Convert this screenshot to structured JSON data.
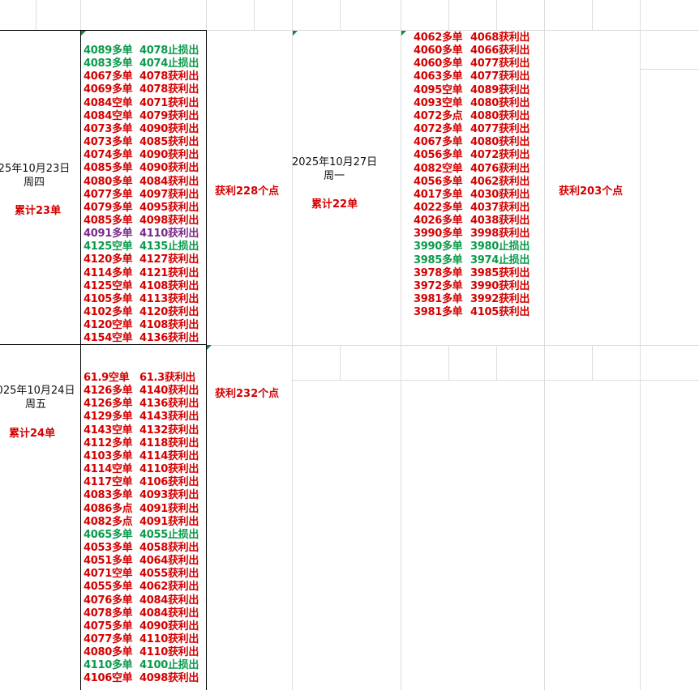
{
  "blocks": [
    {
      "date": "25年10月23日",
      "weekday": "周四",
      "total": "累计23单",
      "profit": "获利228个点",
      "entries": [
        {
          "e": "4089多单",
          "x": "4078止损出",
          "c": "g"
        },
        {
          "e": "4083多单",
          "x": "4074止损出",
          "c": "g"
        },
        {
          "e": "4067多单",
          "x": "4078获利出",
          "c": "r"
        },
        {
          "e": "4069多单",
          "x": "4078获利出",
          "c": "r"
        },
        {
          "e": "4084空单",
          "x": "4071获利出",
          "c": "r"
        },
        {
          "e": "4084空单",
          "x": "4079获利出",
          "c": "r"
        },
        {
          "e": "4073多单",
          "x": "4090获利出",
          "c": "r"
        },
        {
          "e": "4073多单",
          "x": "4085获利出",
          "c": "r"
        },
        {
          "e": "4074多单",
          "x": "4090获利出",
          "c": "r"
        },
        {
          "e": "4085多单",
          "x": "4090获利出",
          "c": "r"
        },
        {
          "e": "4080多单",
          "x": "4084获利出",
          "c": "r"
        },
        {
          "e": "4077多单",
          "x": "4097获利出",
          "c": "r"
        },
        {
          "e": "4079多单",
          "x": "4095获利出",
          "c": "r"
        },
        {
          "e": "4085多单",
          "x": "4098获利出",
          "c": "r"
        },
        {
          "e": "4091多单",
          "x": "4110获利出",
          "c": "p"
        },
        {
          "e": "4125空单",
          "x": "4135止损出",
          "c": "g"
        },
        {
          "e": "4120多单",
          "x": "4127获利出",
          "c": "r"
        },
        {
          "e": "4114多单",
          "x": "4121获利出",
          "c": "r"
        },
        {
          "e": "4125空单",
          "x": "4108获利出",
          "c": "r"
        },
        {
          "e": "4105多单",
          "x": "4113获利出",
          "c": "r"
        },
        {
          "e": "4102多单",
          "x": "4120获利出",
          "c": "r"
        },
        {
          "e": "4120空单",
          "x": "4108获利出",
          "c": "r"
        },
        {
          "e": "4154空单",
          "x": "4136获利出",
          "c": "r"
        }
      ]
    },
    {
      "date": "025年10月24日",
      "weekday": "周五",
      "total": "累计24单",
      "profit": "获利232个点",
      "entries": [
        {
          "e": "61.9空单",
          "x": "61.3获利出",
          "c": "r"
        },
        {
          "e": "4126多单",
          "x": "4140获利出",
          "c": "r"
        },
        {
          "e": "4126多单",
          "x": "4136获利出",
          "c": "r"
        },
        {
          "e": "4129多单",
          "x": "4143获利出",
          "c": "r"
        },
        {
          "e": "4143空单",
          "x": "4132获利出",
          "c": "r"
        },
        {
          "e": "4112多单",
          "x": "4118获利出",
          "c": "r"
        },
        {
          "e": "4103多单",
          "x": "4114获利出",
          "c": "r"
        },
        {
          "e": "4114空单",
          "x": "4110获利出",
          "c": "r"
        },
        {
          "e": "4117空单",
          "x": "4106获利出",
          "c": "r"
        },
        {
          "e": "4083多单",
          "x": "4093获利出",
          "c": "r"
        },
        {
          "e": "4086多点",
          "x": "4091获利出",
          "c": "r"
        },
        {
          "e": "4082多点",
          "x": "4091获利出",
          "c": "r"
        },
        {
          "e": "4065多单",
          "x": "4055止损出",
          "c": "g"
        },
        {
          "e": "4053多单",
          "x": "4058获利出",
          "c": "r"
        },
        {
          "e": "4051多单",
          "x": "4064获利出",
          "c": "r"
        },
        {
          "e": "4071空单",
          "x": "4055获利出",
          "c": "r"
        },
        {
          "e": "4055多单",
          "x": "4062获利出",
          "c": "r"
        },
        {
          "e": "4076多单",
          "x": "4084获利出",
          "c": "r"
        },
        {
          "e": "4078多单",
          "x": "4084获利出",
          "c": "r"
        },
        {
          "e": "4075多单",
          "x": "4090获利出",
          "c": "r"
        },
        {
          "e": "4077多单",
          "x": "4110获利出",
          "c": "r"
        },
        {
          "e": "4080多单",
          "x": "4110获利出",
          "c": "r"
        },
        {
          "e": "4110多单",
          "x": "4100止损出",
          "c": "g"
        },
        {
          "e": "4106空单",
          "x": "4098获利出",
          "c": "r"
        }
      ]
    },
    {
      "date": "2025年10月27日",
      "weekday": "周一",
      "total": "累计22单",
      "profit": "获利203个点",
      "entries": [
        {
          "e": "4062多单",
          "x": "4068获利出",
          "c": "r"
        },
        {
          "e": "4060多单",
          "x": "4066获利出",
          "c": "r"
        },
        {
          "e": "4060多单",
          "x": "4077获利出",
          "c": "r"
        },
        {
          "e": "4063多单",
          "x": "4077获利出",
          "c": "r"
        },
        {
          "e": "4095空单",
          "x": "4089获利出",
          "c": "r"
        },
        {
          "e": "4093空单",
          "x": "4080获利出",
          "c": "r"
        },
        {
          "e": "4072多点",
          "x": "4080获利出",
          "c": "r"
        },
        {
          "e": "4072多单",
          "x": "4077获利出",
          "c": "r"
        },
        {
          "e": "4067多单",
          "x": "4080获利出",
          "c": "r"
        },
        {
          "e": "4056多单",
          "x": "4072获利出",
          "c": "r"
        },
        {
          "e": "4082空单",
          "x": "4076获利出",
          "c": "r"
        },
        {
          "e": "4056多单",
          "x": "4062获利出",
          "c": "r"
        },
        {
          "e": "4017多单",
          "x": "4030获利出",
          "c": "r"
        },
        {
          "e": "4022多单",
          "x": "4037获利出",
          "c": "r"
        },
        {
          "e": "4026多单",
          "x": "4038获利出",
          "c": "r"
        },
        {
          "e": "3990多单",
          "x": "3998获利出",
          "c": "r"
        },
        {
          "e": "3990多单",
          "x": "3980止损出",
          "c": "g"
        },
        {
          "e": "3985多单",
          "x": "3974止损出",
          "c": "g"
        },
        {
          "e": "3978多单",
          "x": "3985获利出",
          "c": "r"
        },
        {
          "e": "3972多单",
          "x": "3990获利出",
          "c": "r"
        },
        {
          "e": "3981多单",
          "x": "3992获利出",
          "c": "r"
        },
        {
          "e": "3981多单",
          "x": "4105获利出",
          "c": "r"
        }
      ]
    }
  ]
}
